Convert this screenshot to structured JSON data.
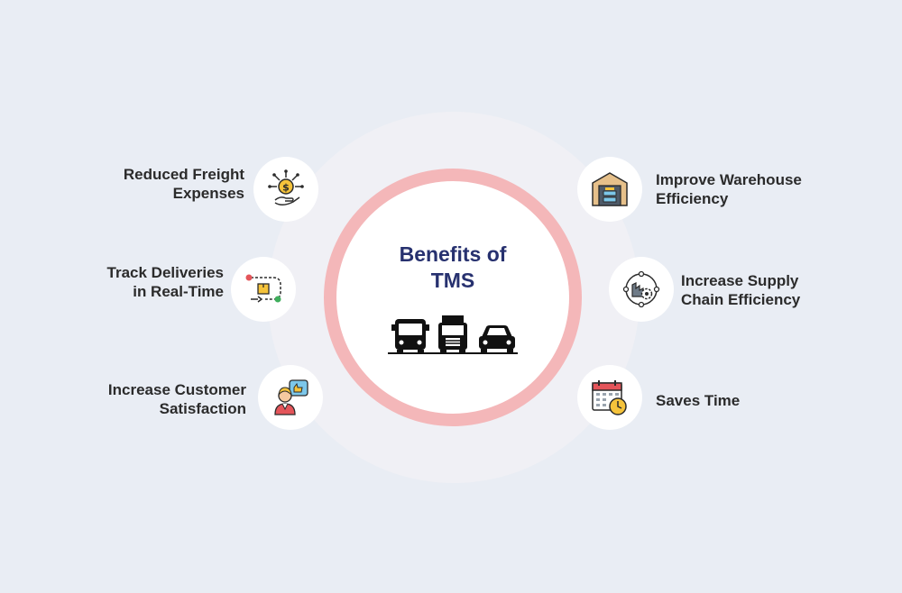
{
  "center": {
    "title_line1": "Benefits of",
    "title_line2": "TMS",
    "icons": [
      "bus-icon",
      "truck-icon",
      "car-icon"
    ]
  },
  "benefits": [
    {
      "line1": "Reduced Freight",
      "line2": "Expenses",
      "icon": "money-distribution-icon"
    },
    {
      "line1": "Track Deliveries",
      "line2": "in Real-Time",
      "icon": "delivery-route-icon"
    },
    {
      "line1": "Increase Customer",
      "line2": "Satisfaction",
      "icon": "customer-thumbs-up-icon"
    },
    {
      "line1": "Improve Warehouse",
      "line2": "Efficiency",
      "icon": "warehouse-icon"
    },
    {
      "line1": "Increase Supply",
      "line2": "Chain Efficiency",
      "icon": "supply-chain-gear-icon"
    },
    {
      "line1": "Saves Time",
      "line2": "",
      "icon": "calendar-clock-icon"
    }
  ],
  "colors": {
    "background": "#e9edf4",
    "title": "#27316f",
    "ring": "#f4b7b9",
    "icon_yellow": "#f5c33b",
    "icon_red": "#e4555a",
    "icon_green": "#3fae5c",
    "icon_dark": "#2b2b2b"
  }
}
